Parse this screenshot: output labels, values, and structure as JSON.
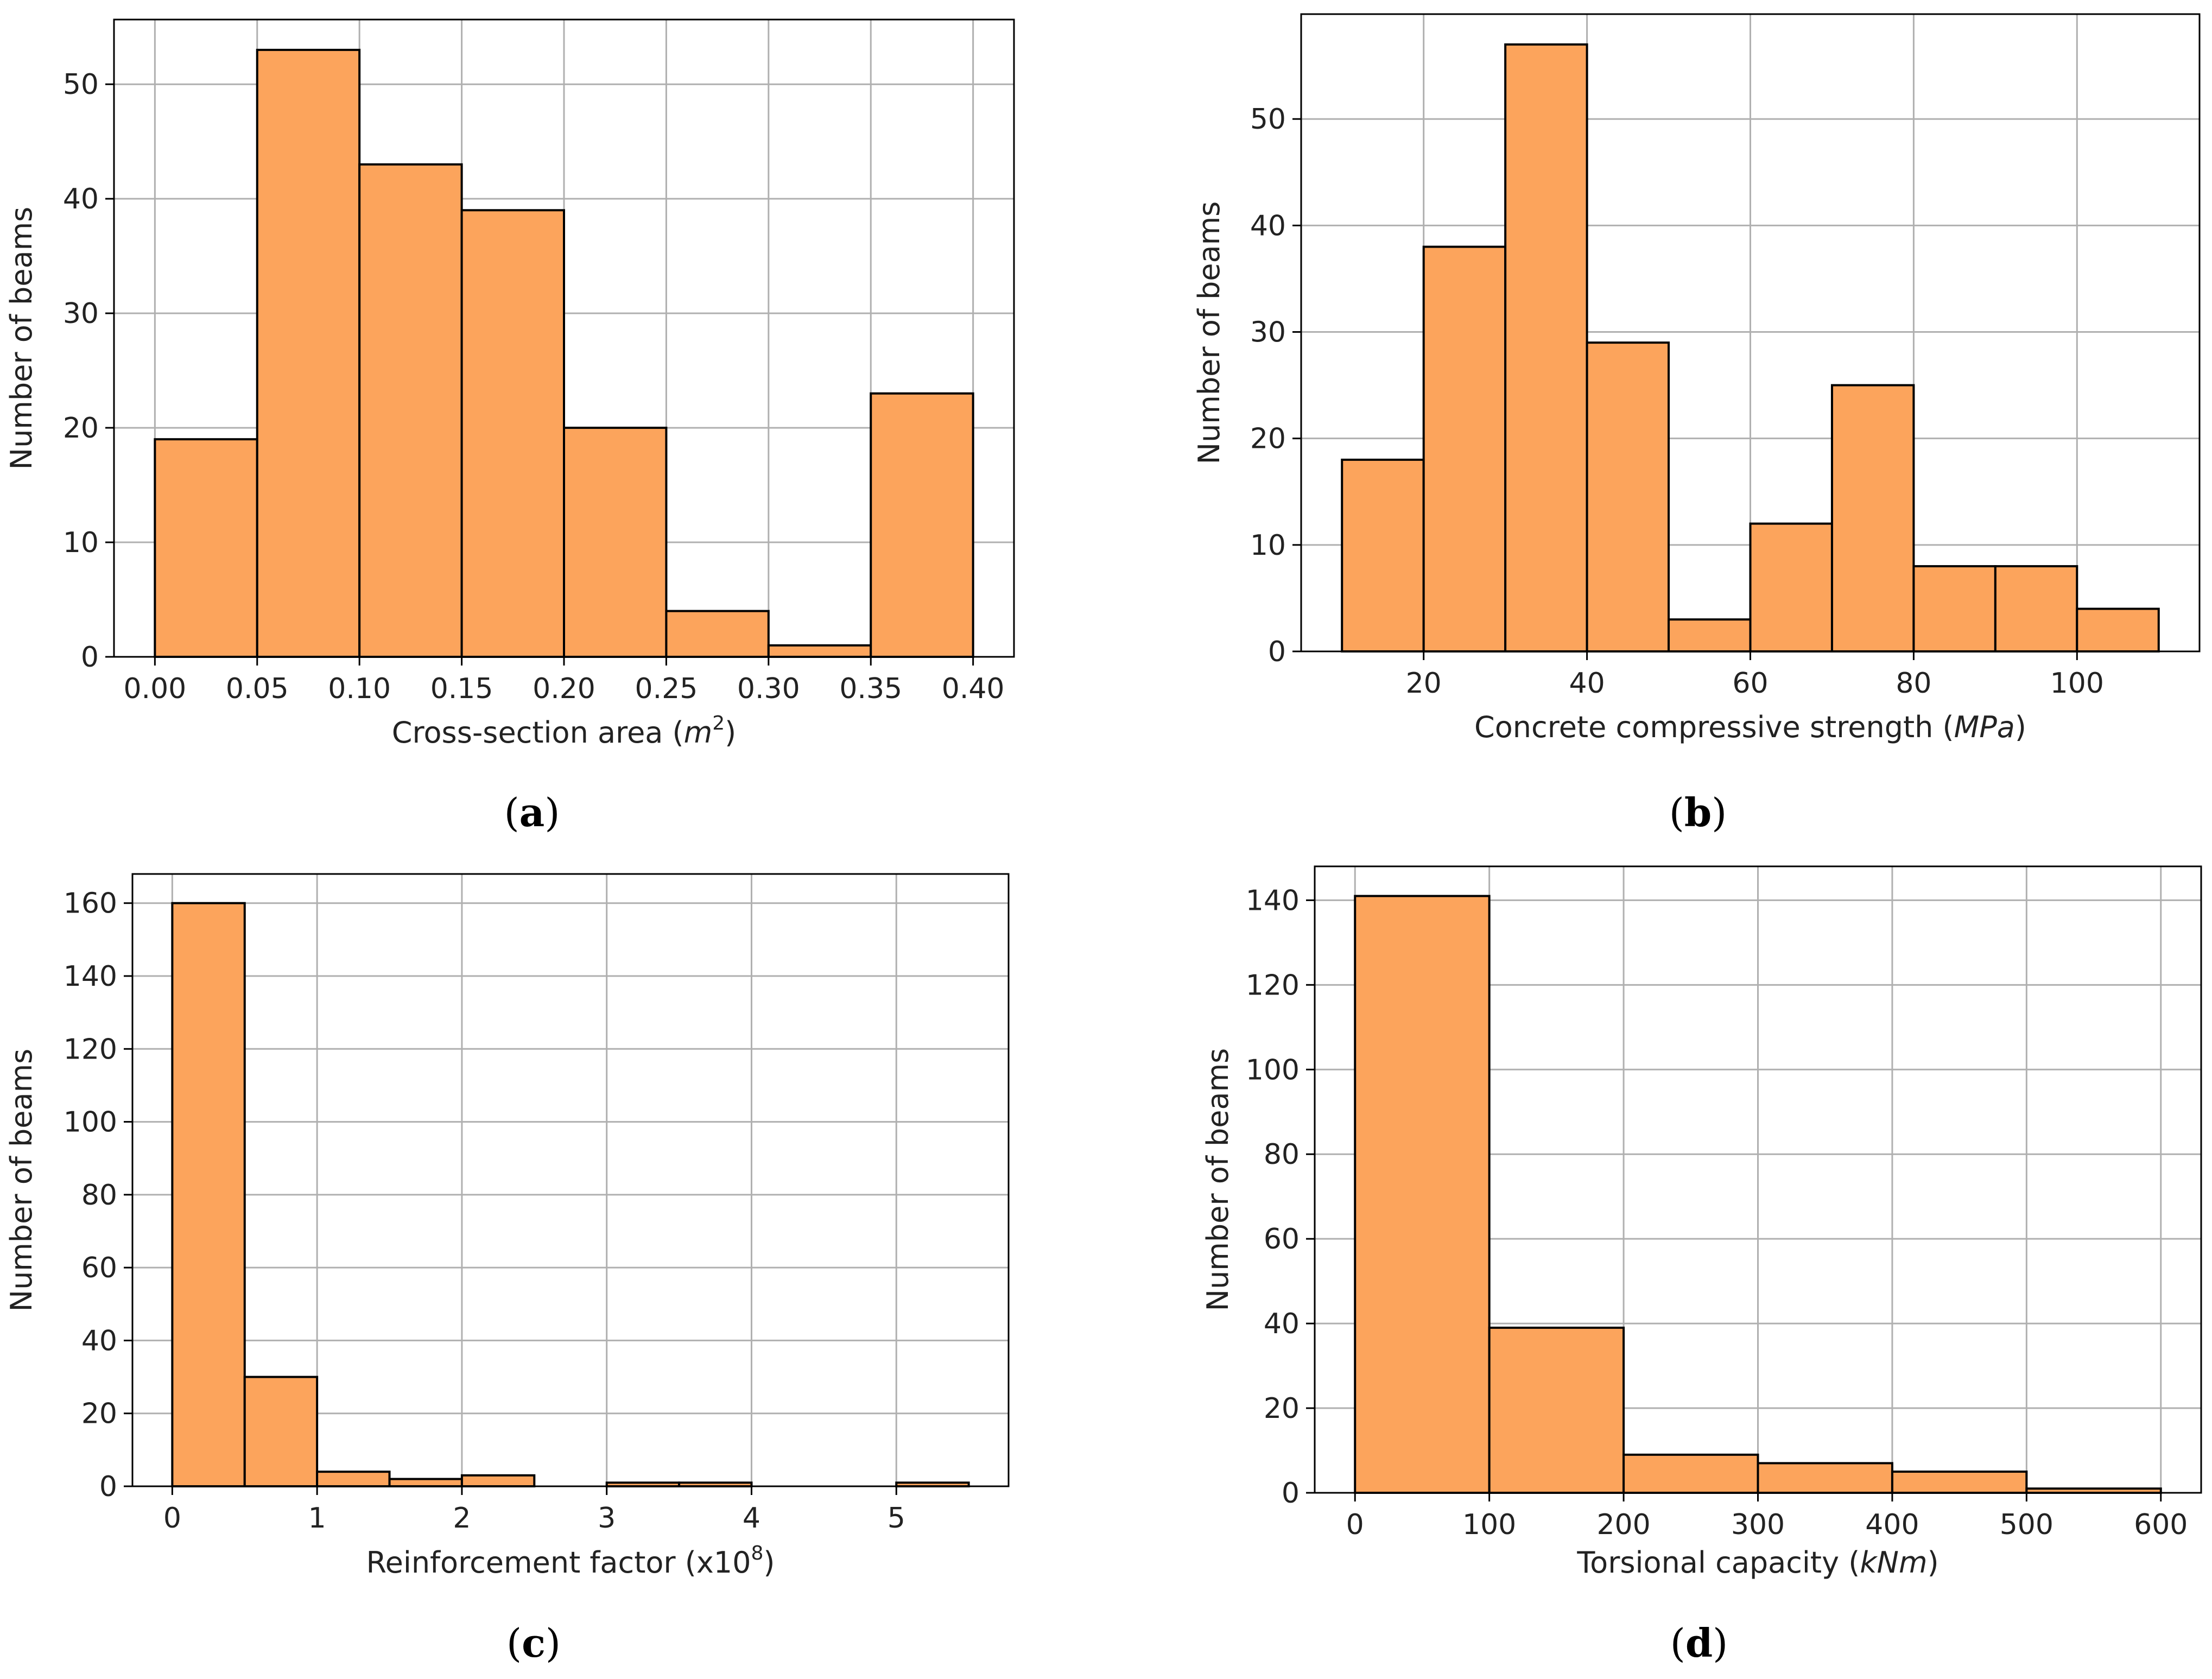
{
  "colors": {
    "bar": "#fca45c",
    "edge": "#000000",
    "grid": "#b0b0b0"
  },
  "chart_data": [
    {
      "type": "bar",
      "panel": "(a)",
      "panel_letter": "a",
      "xlabel": "Cross-section area (m²)",
      "xlabel_parts": {
        "text": "Cross-section area (",
        "var": "m",
        "sup": "2",
        "end": ")"
      },
      "ylabel": "Number of beams",
      "bin_edges": [
        0.0,
        0.05,
        0.1,
        0.15,
        0.2,
        0.25,
        0.3,
        0.35,
        0.4
      ],
      "values": [
        19,
        53,
        43,
        39,
        20,
        4,
        1,
        23
      ],
      "xlim": [
        -0.02,
        0.42
      ],
      "ylim": [
        0,
        55.65
      ],
      "xticks": [
        0.0,
        0.05,
        0.1,
        0.15,
        0.2,
        0.25,
        0.3,
        0.35,
        0.4
      ],
      "xtick_labels": [
        "0.00",
        "0.05",
        "0.10",
        "0.15",
        "0.20",
        "0.25",
        "0.30",
        "0.35",
        "0.40"
      ],
      "yticks": [
        0,
        10,
        20,
        30,
        40,
        50
      ],
      "ytick_labels": [
        "0",
        "10",
        "20",
        "30",
        "40",
        "50"
      ],
      "grid": true
    },
    {
      "type": "bar",
      "panel": "(b)",
      "panel_letter": "b",
      "xlabel": "Concrete compressive strength (MPa)",
      "xlabel_parts": {
        "text": "Concrete compressive strength (",
        "var": "MPa",
        "sup": "",
        "end": ")"
      },
      "ylabel": "Number of beams",
      "bin_edges": [
        10,
        20,
        30,
        40,
        50,
        60,
        70,
        80,
        90,
        100,
        110
      ],
      "values": [
        18,
        38,
        57,
        29,
        3,
        12,
        25,
        8,
        8,
        4
      ],
      "xlim": [
        5,
        115
      ],
      "ylim": [
        0,
        59.85
      ],
      "xticks": [
        20,
        40,
        60,
        80,
        100
      ],
      "xtick_labels": [
        "20",
        "40",
        "60",
        "80",
        "100"
      ],
      "yticks": [
        0,
        10,
        20,
        30,
        40,
        50
      ],
      "ytick_labels": [
        "0",
        "10",
        "20",
        "30",
        "40",
        "50"
      ],
      "grid": true
    },
    {
      "type": "bar",
      "panel": "(c)",
      "panel_letter": "c",
      "xlabel": "Reinforcement factor (x10⁸)",
      "xlabel_parts": {
        "text": "Reinforcement factor (x10",
        "var": "",
        "sup": "8",
        "end": ")"
      },
      "ylabel": "Number of beams",
      "bin_edges": [
        0,
        0.5,
        1.0,
        1.5,
        2.0,
        2.5,
        3.0,
        3.5,
        4.0,
        4.5,
        5.0,
        5.5
      ],
      "values": [
        160,
        30,
        4,
        2,
        3,
        0,
        1,
        1,
        0,
        0,
        1
      ],
      "xlim": [
        -0.275,
        5.775
      ],
      "ylim": [
        0,
        168
      ],
      "xticks": [
        0,
        1,
        2,
        3,
        4,
        5
      ],
      "xtick_labels": [
        "0",
        "1",
        "2",
        "3",
        "4",
        "5"
      ],
      "yticks": [
        0,
        20,
        40,
        60,
        80,
        100,
        120,
        140,
        160
      ],
      "ytick_labels": [
        "0",
        "20",
        "40",
        "60",
        "80",
        "100",
        "120",
        "140",
        "160"
      ],
      "grid": true
    },
    {
      "type": "bar",
      "panel": "(d)",
      "panel_letter": "d",
      "xlabel": "Torsional capacity (kNm)",
      "xlabel_parts": {
        "text": "Torsional capacity (",
        "var": "kNm",
        "sup": "",
        "end": ")"
      },
      "ylabel": "Number of beams",
      "bin_edges": [
        0,
        100,
        200,
        300,
        400,
        500,
        600
      ],
      "values": [
        141,
        39,
        9,
        7,
        5,
        1
      ],
      "xlim": [
        -30,
        630
      ],
      "ylim": [
        0,
        148
      ],
      "xticks": [
        0,
        100,
        200,
        300,
        400,
        500,
        600
      ],
      "xtick_labels": [
        "0",
        "100",
        "200",
        "300",
        "400",
        "500",
        "600"
      ],
      "yticks": [
        0,
        20,
        40,
        60,
        80,
        100,
        120,
        140
      ],
      "ytick_labels": [
        "0",
        "20",
        "40",
        "60",
        "80",
        "100",
        "120",
        "140"
      ],
      "grid": true
    }
  ]
}
